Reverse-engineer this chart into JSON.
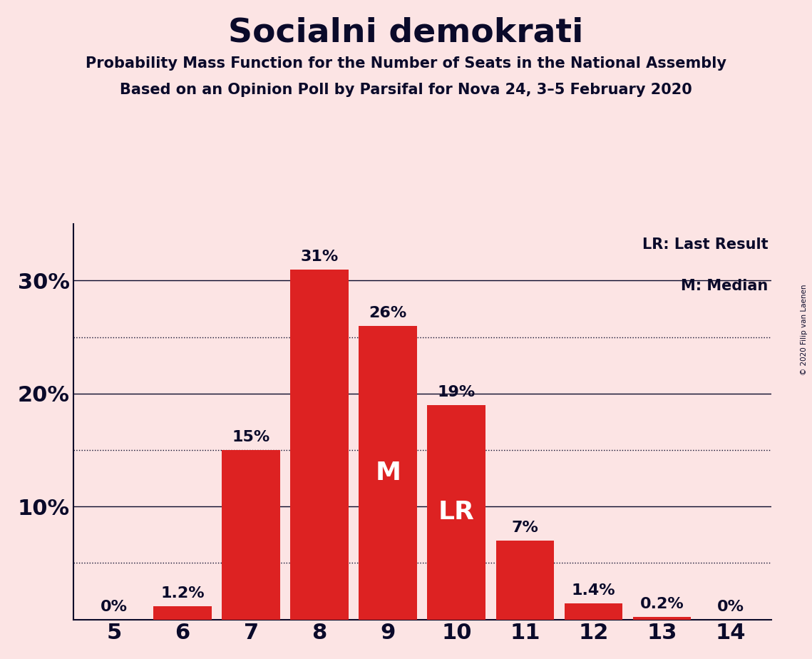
{
  "title": "Socialni demokrati",
  "subtitle1": "Probability Mass Function for the Number of Seats in the National Assembly",
  "subtitle2": "Based on an Opinion Poll by Parsifal for Nova 24, 3–5 February 2020",
  "copyright": "© 2020 Filip van Laenen",
  "categories": [
    5,
    6,
    7,
    8,
    9,
    10,
    11,
    12,
    13,
    14
  ],
  "values": [
    0.0,
    1.2,
    15.0,
    31.0,
    26.0,
    19.0,
    7.0,
    1.4,
    0.2,
    0.0
  ],
  "bar_color": "#dd2222",
  "bg_color": "#fce4e4",
  "text_color": "#0a0a2a",
  "bar_labels": [
    "0%",
    "1.2%",
    "15%",
    "31%",
    "26%",
    "19%",
    "7%",
    "1.4%",
    "0.2%",
    "0%"
  ],
  "median_bar": 9,
  "lr_bar": 10,
  "legend_lr": "LR: Last Result",
  "legend_m": "M: Median",
  "ylim": [
    0,
    35
  ],
  "yticks": [
    0,
    10,
    20,
    30
  ],
  "ytick_labels": [
    "",
    "10%",
    "20%",
    "30%"
  ],
  "dotted_yticks": [
    5,
    15,
    25
  ],
  "solid_yticks": [
    10,
    20,
    30
  ]
}
